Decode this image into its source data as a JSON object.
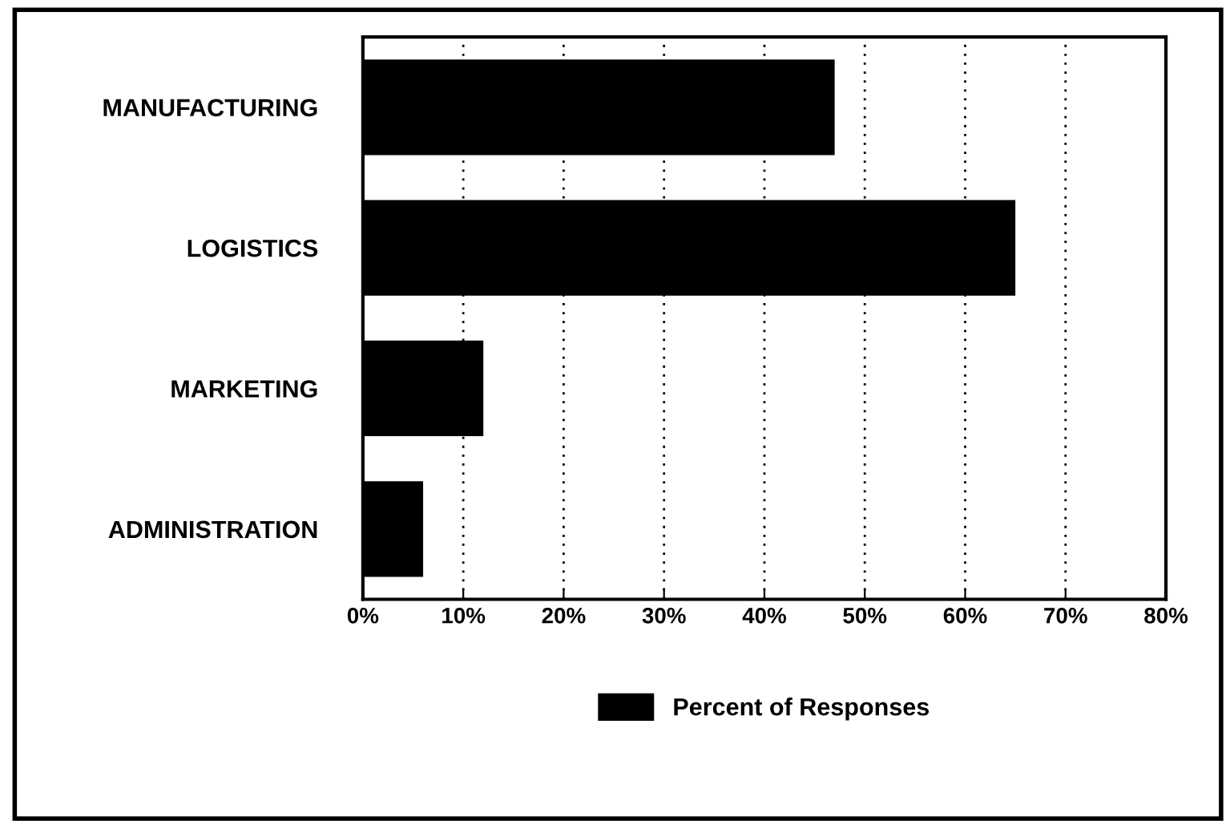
{
  "chart_data": {
    "type": "bar",
    "orientation": "horizontal",
    "categories": [
      "MANUFACTURING",
      "LOGISTICS",
      "MARKETING",
      "ADMINISTRATION"
    ],
    "series": [
      {
        "name": "Percent of Responses",
        "color": "#000000",
        "values": [
          47,
          65,
          12,
          6
        ]
      }
    ],
    "xlim": [
      0,
      80
    ],
    "xticks": [
      {
        "value": 0,
        "label": "0%"
      },
      {
        "value": 10,
        "label": "10%"
      },
      {
        "value": 20,
        "label": "20%"
      },
      {
        "value": 30,
        "label": "30%"
      },
      {
        "value": 40,
        "label": "40%"
      },
      {
        "value": 50,
        "label": "50%"
      },
      {
        "value": 60,
        "label": "60%"
      },
      {
        "value": 70,
        "label": "70%"
      },
      {
        "value": 80,
        "label": "80%"
      }
    ],
    "grid": "x",
    "legend": "bottom"
  }
}
